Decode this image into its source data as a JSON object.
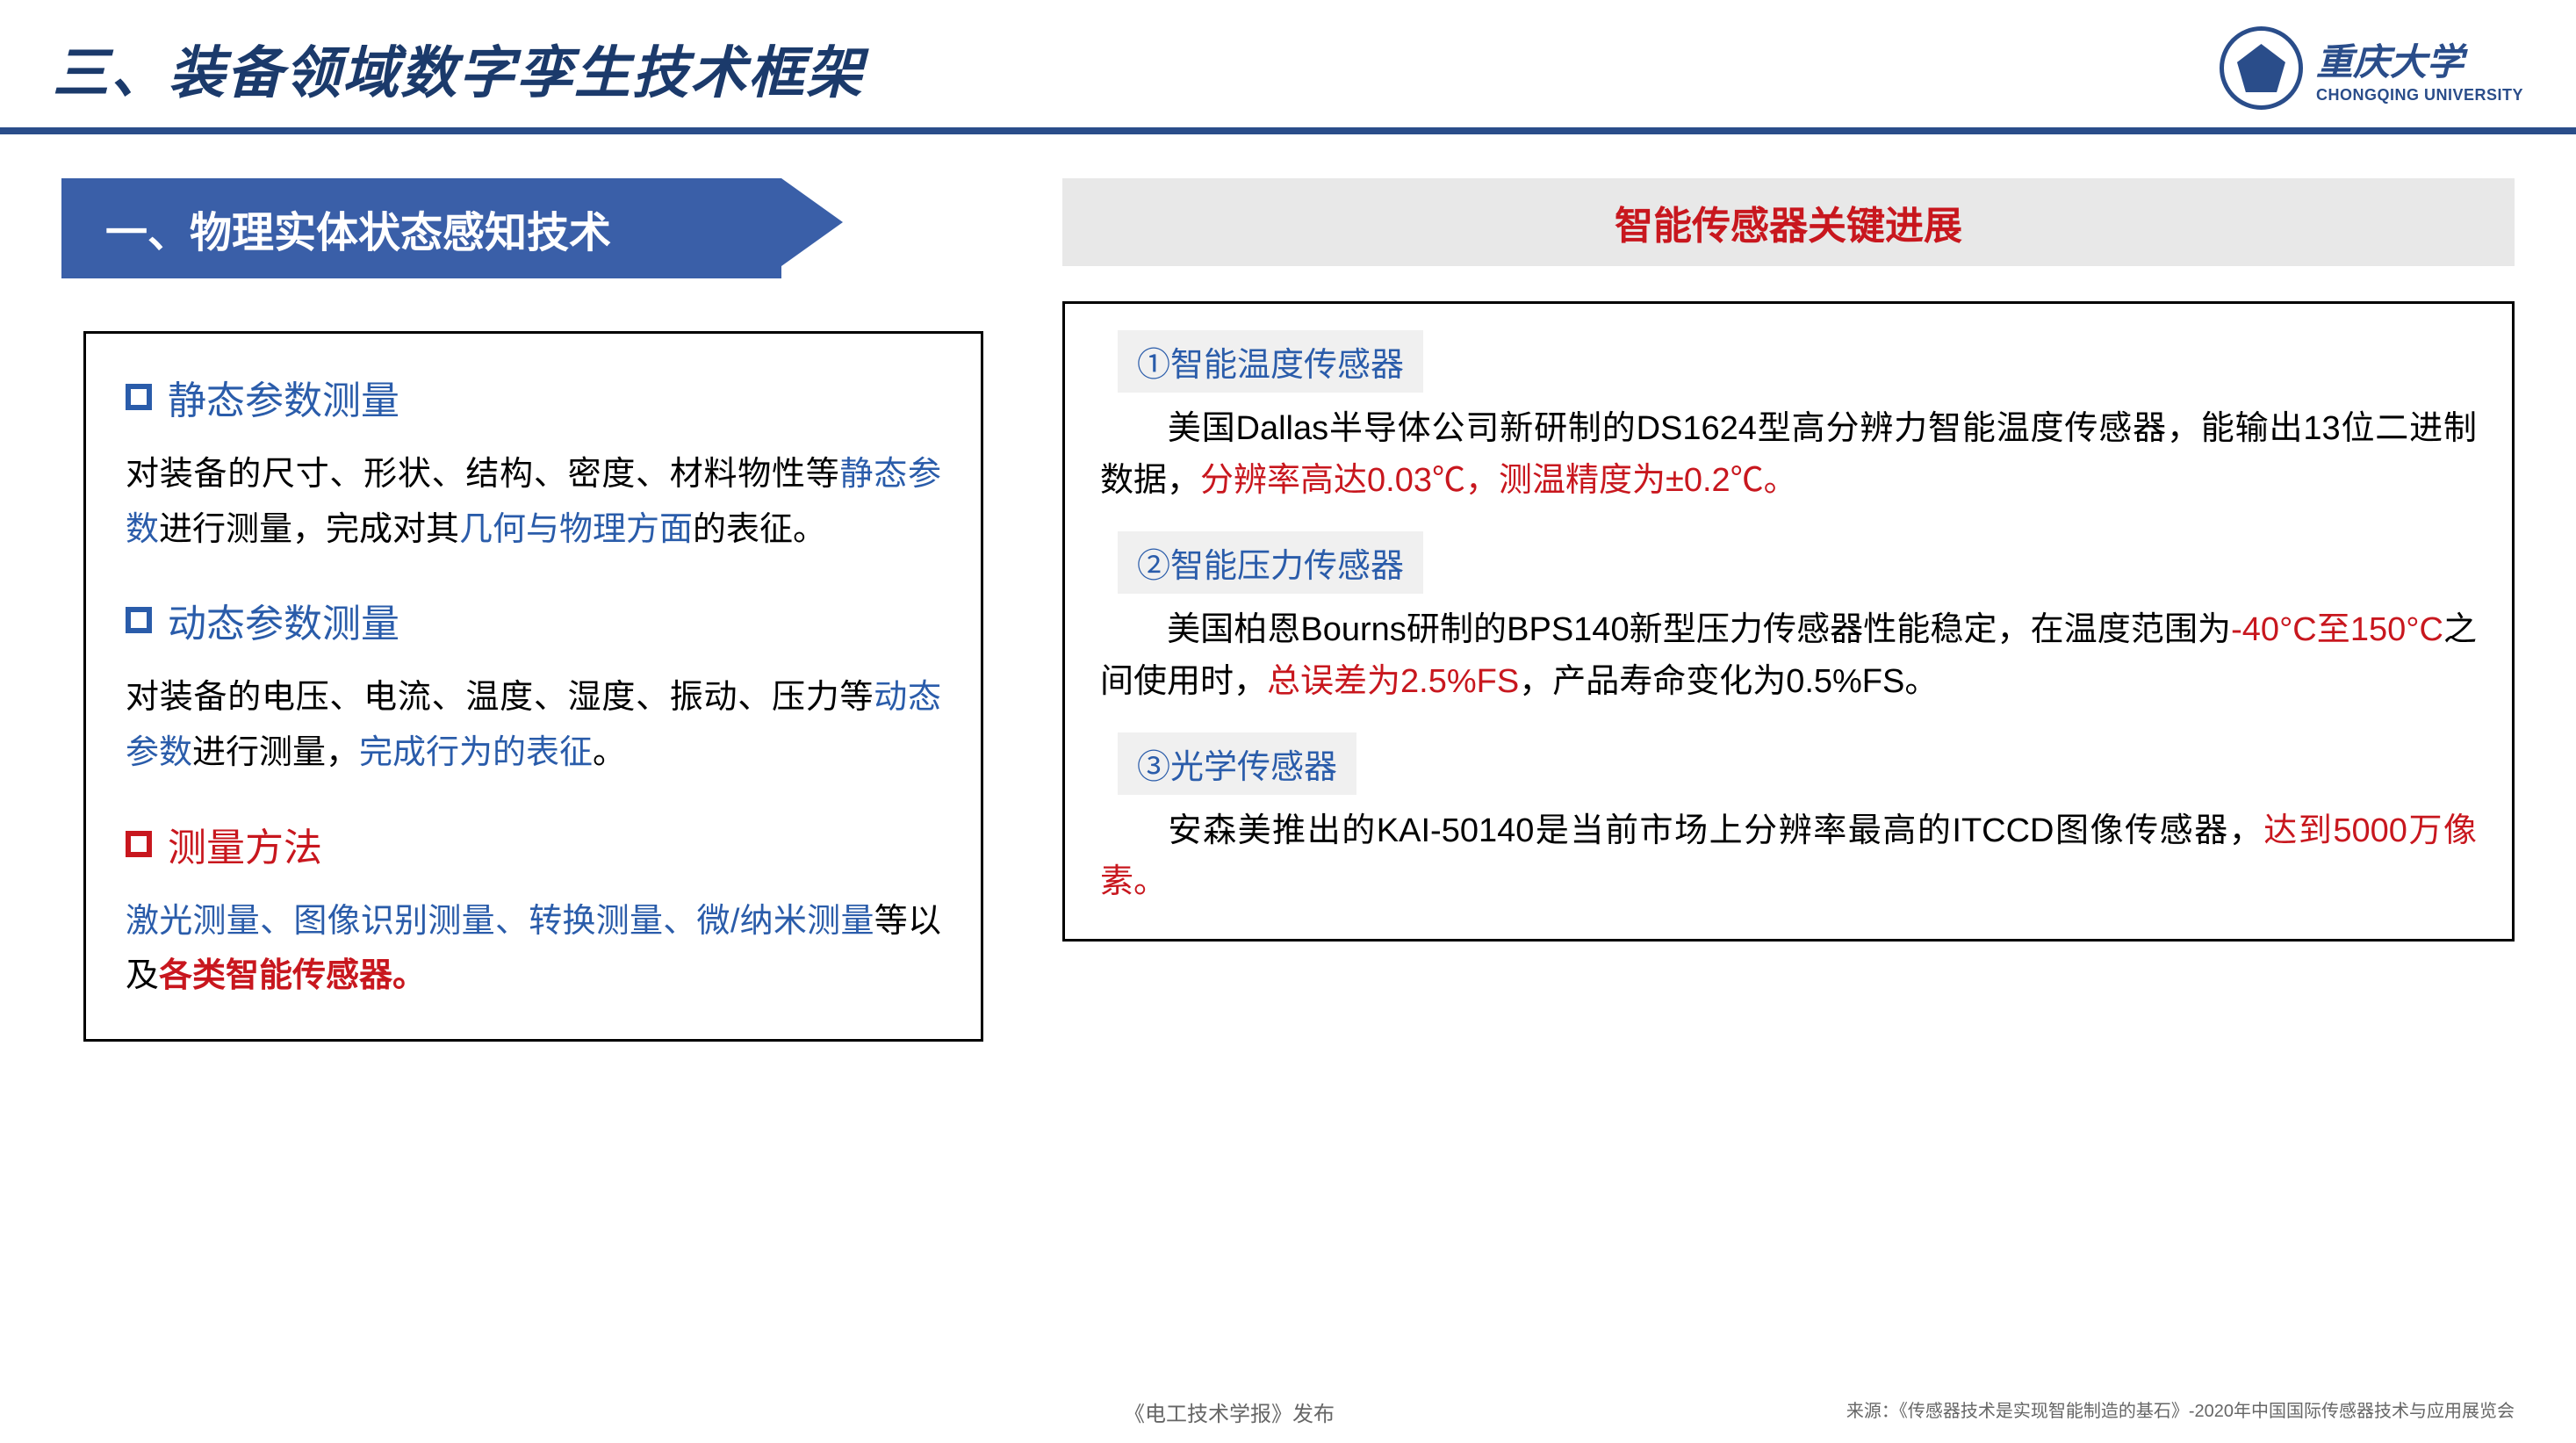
{
  "header": {
    "title": "三、装备领域数字孪生技术框架",
    "logo_cn": "重庆大学",
    "logo_en": "CHONGQING UNIVERSITY"
  },
  "colors": {
    "navy": "#1b3a6b",
    "banner_blue": "#3a5fa8",
    "accent_blue": "#2a5caa",
    "accent_red": "#c8171e",
    "gray_bg": "#e8e8e8",
    "light_gray": "#f0f0f0",
    "border": "#000000",
    "text": "#000000",
    "footer": "#666666"
  },
  "banner": "一、物理实体状态感知技术",
  "left_sections": [
    {
      "bullet_color": "blue",
      "title": "静态参数测量",
      "pre": "对装备的尺寸、形状、结构、密度、材料物性等",
      "hl1": "静态参数",
      "mid": "进行测量，完成对其",
      "hl2": "几何与物理方面",
      "post": "的表征。"
    },
    {
      "bullet_color": "blue",
      "title": "动态参数测量",
      "pre": "对装备的电压、电流、温度、湿度、振动、压力等",
      "hl1": "动态参数",
      "mid": "进行测量，",
      "hl2": "完成行为的表征",
      "post": "。"
    },
    {
      "bullet_color": "red",
      "title": "测量方法",
      "pre": "",
      "hl1": "激光测量、图像识别测量、转换测量、微/纳米测量",
      "mid": "等以及",
      "hl2_red": "各类智能传感器。",
      "post": ""
    }
  ],
  "right_header": "智能传感器关键进展",
  "right_items": [
    {
      "label": "①智能温度传感器",
      "pre": "美国Dallas半导体公司新研制的DS1624型高分辨力智能温度传感器，能输出13位二进制数据，",
      "red": "分辨率高达0.03℃，测温精度为±0.2℃。",
      "post": ""
    },
    {
      "label": "②智能压力传感器",
      "pre": "美国柏恩Bourns研制的BPS140新型压力传感器性能稳定，在温度范围为",
      "red": "-40°C至150°C",
      "mid": "之间使用时，",
      "red2": "总误差为2.5%FS",
      "post": "，产品寿命变化为0.5%FS。"
    },
    {
      "label": "③光学传感器",
      "pre": "安森美推出的KAI-50140是当前市场上分辨率最高的ITCCD图像传感器，",
      "red": "达到5000万像素。",
      "post": ""
    }
  ],
  "footer": {
    "left": "《电工技术学报》发布",
    "right": "来源：《传感器技术是实现智能制造的基石》-2020年中国国际传感器技术与应用展览会"
  }
}
